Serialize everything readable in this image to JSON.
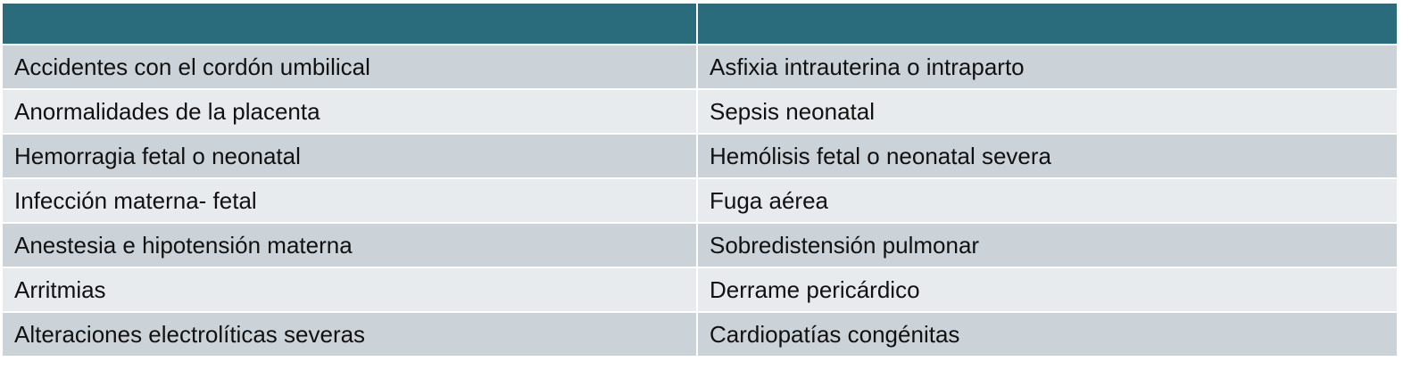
{
  "table": {
    "rows": [
      [
        "Accidentes con el cordón umbilical",
        "Asfixia intrauterina o intraparto"
      ],
      [
        "Anormalidades de la placenta",
        "Sepsis neonatal"
      ],
      [
        "Hemorragia fetal o neonatal",
        "Hemólisis fetal o neonatal severa"
      ],
      [
        "Infección materna- fetal",
        "Fuga aérea"
      ],
      [
        "Anestesia e hipotensión materna",
        "Sobredistensión pulmonar"
      ],
      [
        "Arritmias",
        "Derrame pericárdico"
      ],
      [
        "Alteraciones electrolíticas severas",
        "Cardiopatías congénitas"
      ]
    ]
  }
}
